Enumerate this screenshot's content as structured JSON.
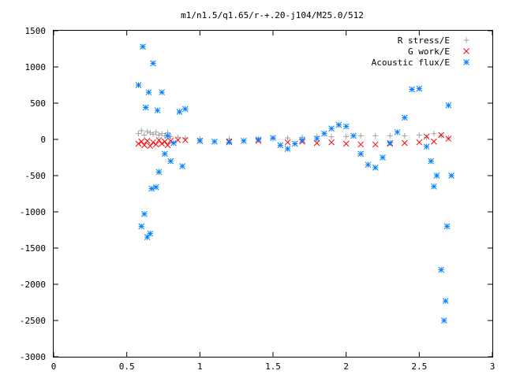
{
  "chart_data": {
    "type": "scatter",
    "title": "m1/n1.5/q1.65/r-+.20-j104/M25.0/512",
    "xlabel": "",
    "ylabel": "",
    "xlim": [
      0,
      3
    ],
    "ylim": [
      -3000,
      1500
    ],
    "xticks": [
      0,
      0.5,
      1,
      1.5,
      2,
      2.5,
      3
    ],
    "xtick_labels": [
      "0",
      "0.5",
      "1",
      "1.5",
      "2",
      "2.5",
      "3"
    ],
    "yticks": [
      -3000,
      -2500,
      -2000,
      -1500,
      -1000,
      -500,
      0,
      500,
      1000,
      1500
    ],
    "ytick_labels": [
      "-3000",
      "-2500",
      "-2000",
      "-1500",
      "-1000",
      "-500",
      "0",
      "500",
      "1000",
      "1500"
    ],
    "grid": false,
    "legend_position": "top-right",
    "series": [
      {
        "name": "R stress/E",
        "marker": "plus",
        "color": "#a0a0a0",
        "x": [
          0.58,
          0.6,
          0.62,
          0.64,
          0.66,
          0.68,
          0.7,
          0.72,
          0.74,
          0.76,
          0.78,
          0.8,
          0.85,
          0.9,
          1.0,
          1.2,
          1.5,
          1.6,
          1.7,
          1.8,
          1.9,
          2.0,
          2.1,
          2.2,
          2.3,
          2.4,
          2.5,
          2.55,
          2.6,
          2.65,
          2.7
        ],
        "y": [
          80,
          120,
          60,
          110,
          90,
          70,
          100,
          60,
          80,
          50,
          90,
          40,
          30,
          20,
          10,
          5,
          10,
          20,
          30,
          40,
          35,
          40,
          50,
          50,
          50,
          50,
          60,
          30,
          80,
          50,
          20
        ]
      },
      {
        "name": "G work/E",
        "marker": "x",
        "color": "#ff0000",
        "x": [
          0.58,
          0.6,
          0.62,
          0.64,
          0.66,
          0.68,
          0.7,
          0.72,
          0.74,
          0.76,
          0.78,
          0.8,
          0.85,
          0.9,
          1.0,
          1.2,
          1.4,
          1.6,
          1.7,
          1.8,
          1.9,
          2.0,
          2.1,
          2.2,
          2.3,
          2.4,
          2.5,
          2.55,
          2.6,
          2.65,
          2.7
        ],
        "y": [
          -60,
          -30,
          -80,
          -20,
          -90,
          -40,
          -70,
          -10,
          -60,
          -30,
          -80,
          -20,
          -10,
          -10,
          -20,
          -30,
          -20,
          -40,
          -30,
          -50,
          -40,
          -60,
          -70,
          -70,
          -60,
          -50,
          -40,
          40,
          -30,
          60,
          10
        ]
      },
      {
        "name": "Acoustic flux/E",
        "marker": "star",
        "color": "#0080ff",
        "x": [
          0.58,
          0.6,
          0.61,
          0.62,
          0.63,
          0.64,
          0.65,
          0.66,
          0.67,
          0.68,
          0.7,
          0.71,
          0.72,
          0.74,
          0.76,
          0.78,
          0.8,
          0.82,
          0.86,
          0.88,
          0.9,
          1.0,
          1.1,
          1.2,
          1.3,
          1.4,
          1.5,
          1.55,
          1.6,
          1.65,
          1.7,
          1.8,
          1.85,
          1.9,
          1.95,
          2.0,
          2.05,
          2.1,
          2.15,
          2.2,
          2.25,
          2.3,
          2.35,
          2.4,
          2.45,
          2.5,
          2.55,
          2.58,
          2.6,
          2.62,
          2.65,
          2.67,
          2.68,
          2.69,
          2.7,
          2.72
        ],
        "y": [
          750,
          -1200,
          1280,
          -1030,
          440,
          -1350,
          650,
          -1300,
          -680,
          1050,
          -660,
          400,
          -450,
          650,
          -200,
          50,
          -300,
          -50,
          380,
          -370,
          420,
          -20,
          -30,
          -40,
          -20,
          0,
          20,
          -80,
          -130,
          -60,
          -10,
          10,
          80,
          150,
          200,
          180,
          50,
          -200,
          -350,
          -390,
          -250,
          -50,
          100,
          300,
          690,
          700,
          -100,
          -300,
          -650,
          -500,
          -1800,
          -2500,
          -2230,
          -1200,
          470,
          -500
        ]
      }
    ]
  }
}
